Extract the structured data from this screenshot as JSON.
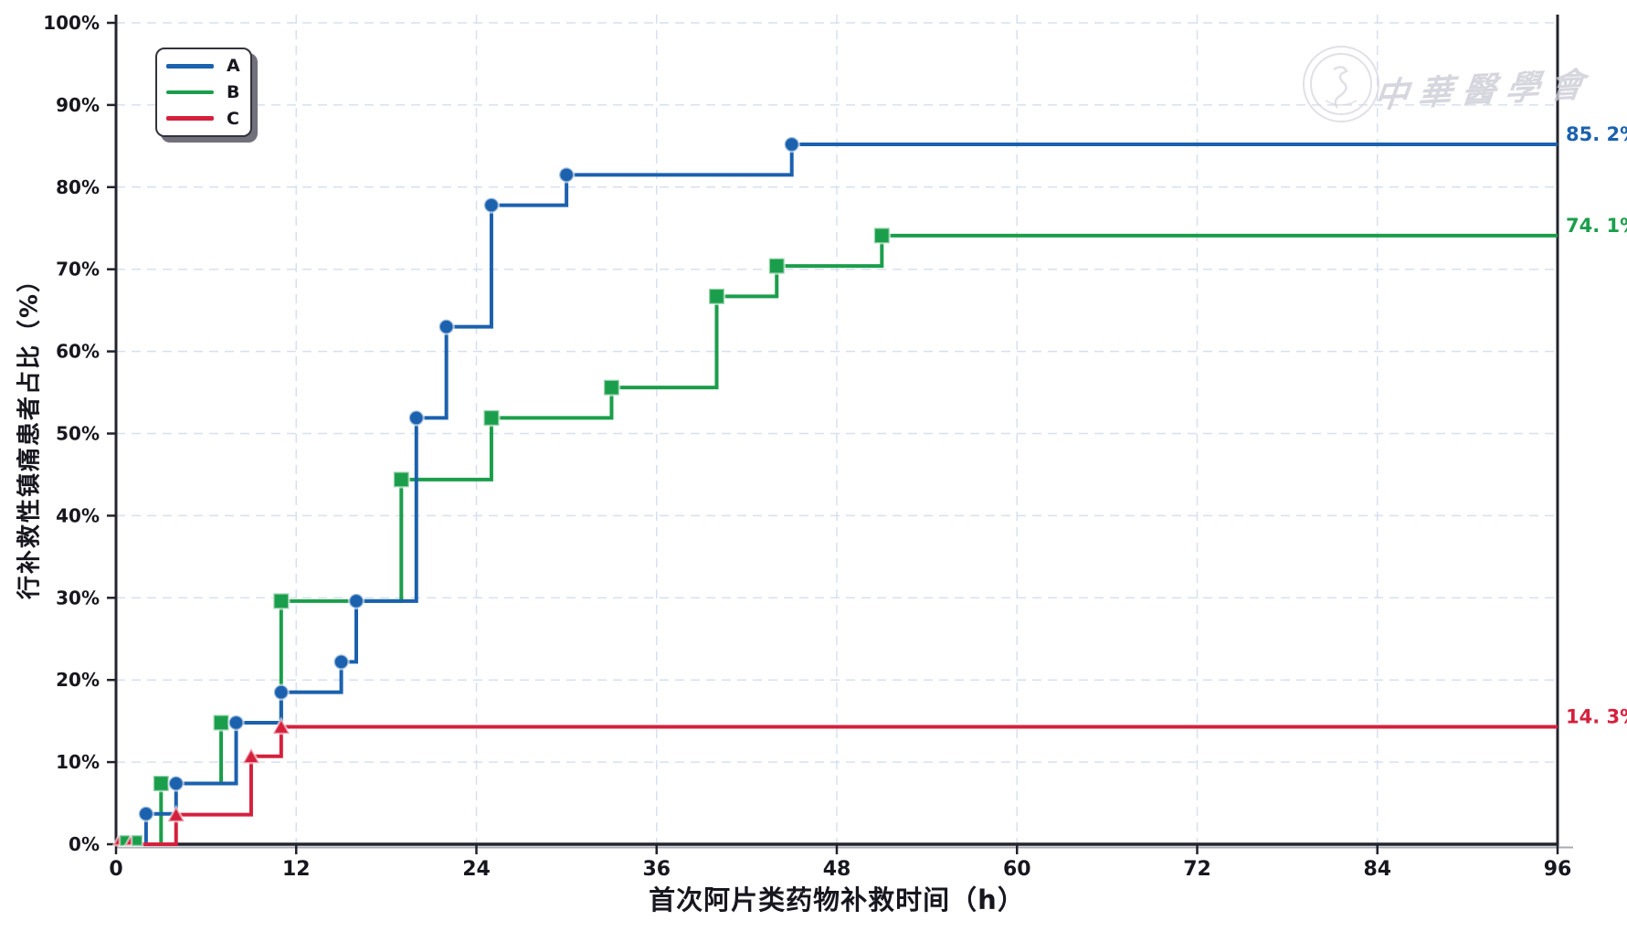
{
  "watermark": {
    "seal_icon": "cma-seal-icon",
    "text": "中華醫學會"
  },
  "legend": {
    "items": [
      {
        "label": "A",
        "color": "#1b61ae"
      },
      {
        "label": "B",
        "color": "#1b9e4b"
      },
      {
        "label": "C",
        "color": "#d5203d"
      }
    ]
  },
  "chart_data": {
    "type": "line",
    "subtype": "step-post-cumulative",
    "title": "",
    "xlabel": "首次阿片类药物补救时间（h）",
    "ylabel": "行补救性镇痛患者占比（%）",
    "xlim": [
      0,
      96
    ],
    "ylim": [
      0,
      100
    ],
    "x_ticks": [
      0,
      12,
      24,
      36,
      48,
      60,
      72,
      84,
      96
    ],
    "y_tick_labels": [
      "0%",
      "10%",
      "20%",
      "30%",
      "40%",
      "50%",
      "60%",
      "70%",
      "80%",
      "90%",
      "100%"
    ],
    "grid": true,
    "grid_color": "#d7e0f0",
    "axis_color": "#23232e",
    "legend_position": "upper-left",
    "series": [
      {
        "name": "A",
        "color": "#1b61ae",
        "marker": "circle",
        "end_label": "85. 2%",
        "final_value": 85.2,
        "points": [
          [
            0,
            0
          ],
          [
            2,
            3.7
          ],
          [
            4,
            7.4
          ],
          [
            8,
            14.8
          ],
          [
            11,
            18.5
          ],
          [
            15,
            22.2
          ],
          [
            16,
            29.6
          ],
          [
            20,
            51.9
          ],
          [
            22,
            63.0
          ],
          [
            25,
            77.8
          ],
          [
            30,
            81.5
          ],
          [
            45,
            85.2
          ]
        ],
        "final_x": 96
      },
      {
        "name": "B",
        "color": "#1b9e4b",
        "marker": "square",
        "end_label": "74. 1%",
        "final_value": 74.1,
        "points": [
          [
            0,
            0
          ],
          [
            3,
            7.4
          ],
          [
            7,
            14.8
          ],
          [
            11,
            29.6
          ],
          [
            19,
            44.4
          ],
          [
            25,
            51.9
          ],
          [
            33,
            55.6
          ],
          [
            40,
            66.7
          ],
          [
            44,
            70.4
          ],
          [
            51,
            74.1
          ]
        ],
        "final_x": 96
      },
      {
        "name": "C",
        "color": "#d5203d",
        "marker": "triangle",
        "end_label": "14. 3%",
        "final_value": 14.3,
        "points": [
          [
            0,
            0
          ],
          [
            4,
            3.6
          ],
          [
            9,
            10.7
          ],
          [
            11,
            14.3
          ]
        ],
        "final_x": 96
      }
    ],
    "baseline_start_markers": [
      {
        "series": "C",
        "x": 0.2,
        "y": 0
      },
      {
        "series": "B",
        "x": 0.6,
        "y": 0
      },
      {
        "series": "C",
        "x": 1.0,
        "y": 0
      },
      {
        "series": "B",
        "x": 1.4,
        "y": 0
      }
    ]
  }
}
